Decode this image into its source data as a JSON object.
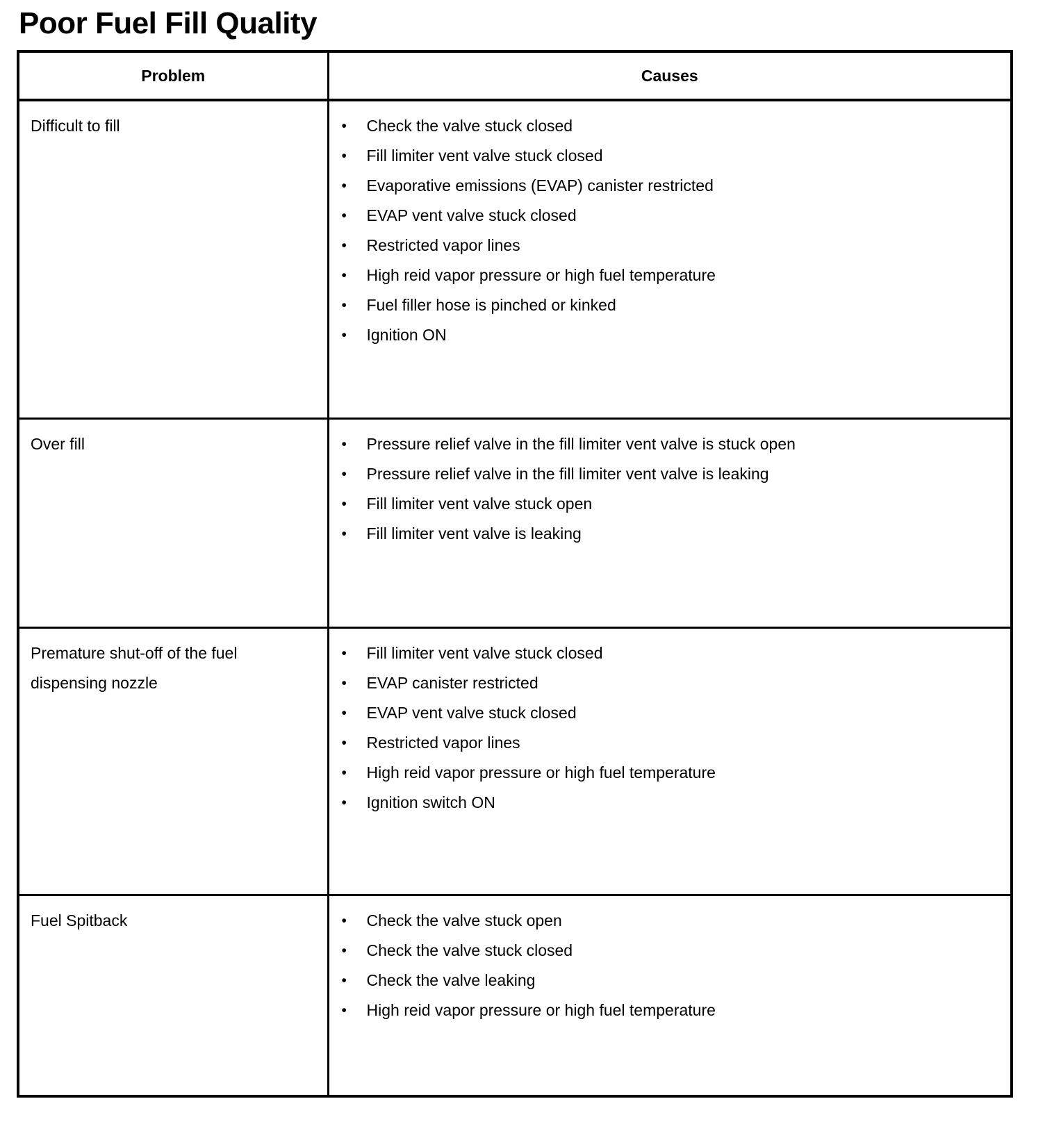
{
  "page": {
    "title": "Poor Fuel Fill Quality"
  },
  "table": {
    "headers": {
      "problem": "Problem",
      "causes": "Causes"
    },
    "bullet_glyph": "•",
    "border_color": "#000000",
    "rows": [
      {
        "problem": "Difficult to fill",
        "causes": [
          "Check the valve stuck closed",
          "Fill limiter vent valve stuck closed",
          "Evaporative emissions (EVAP) canister restricted",
          "EVAP vent valve stuck closed",
          "Restricted vapor lines",
          "High reid vapor pressure or high fuel temperature",
          "Fuel filler hose is pinched or kinked",
          "Ignition ON"
        ]
      },
      {
        "problem": "Over fill",
        "causes": [
          "Pressure relief valve in the fill limiter vent valve is stuck open",
          "Pressure relief valve in the fill limiter vent valve is leaking",
          "Fill limiter vent valve stuck open",
          "Fill limiter vent valve is leaking"
        ]
      },
      {
        "problem": "Premature shut-off of the fuel dispensing nozzle",
        "causes": [
          "Fill limiter vent valve stuck closed",
          "EVAP canister restricted",
          "EVAP vent valve stuck closed",
          "Restricted vapor lines",
          "High reid vapor pressure or high fuel temperature",
          "Ignition switch ON"
        ]
      },
      {
        "problem": "Fuel Spitback",
        "causes": [
          "Check the valve stuck open",
          "Check the valve stuck closed",
          "Check the valve leaking",
          "High reid vapor pressure or high fuel temperature"
        ]
      }
    ]
  }
}
